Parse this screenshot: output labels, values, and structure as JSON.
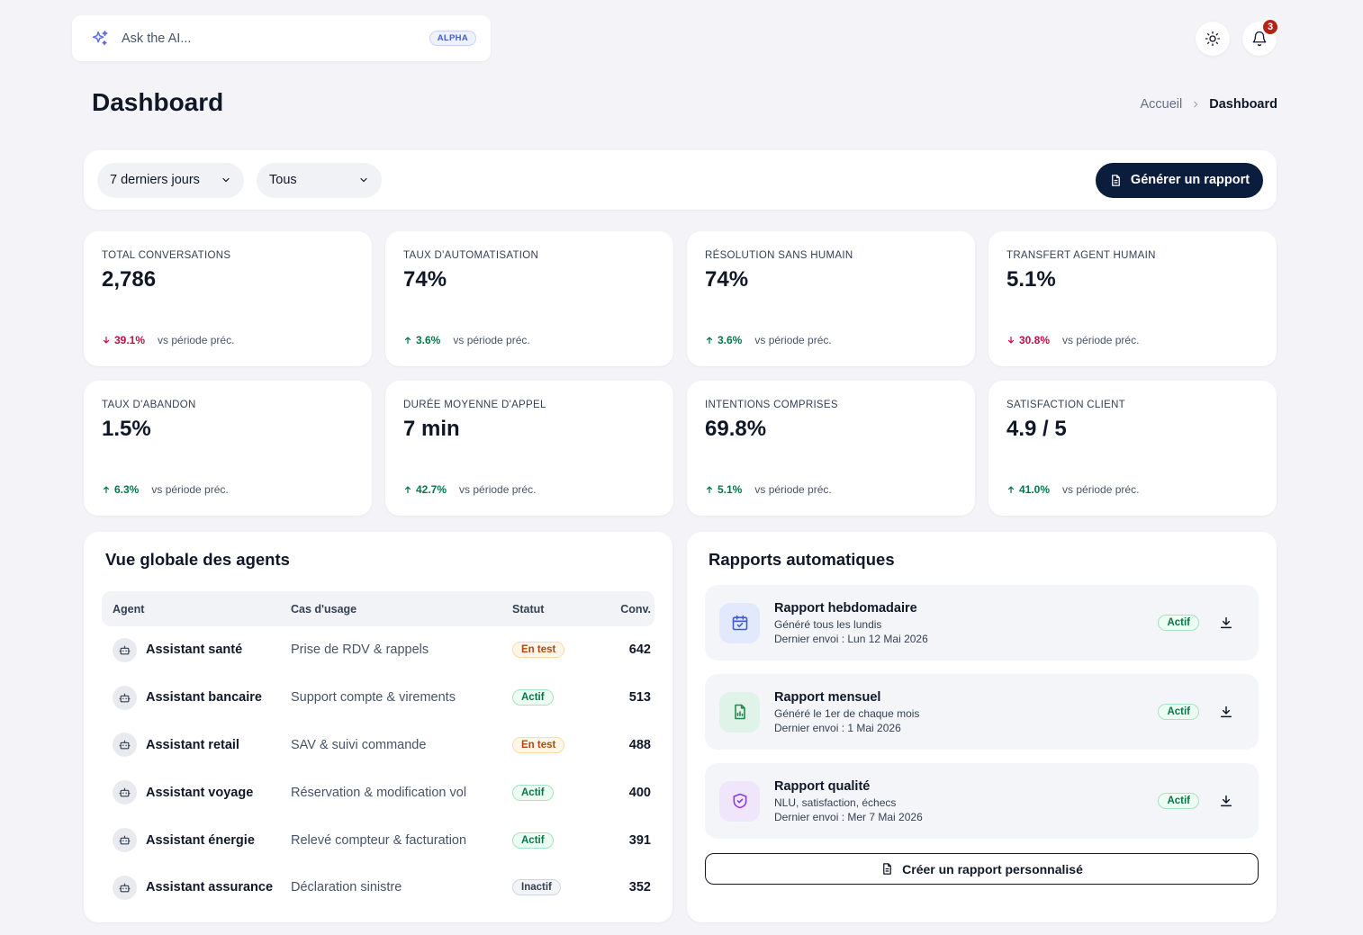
{
  "ai_bar": {
    "placeholder": "Ask the AI...",
    "badge": "ALPHA"
  },
  "header": {
    "notifications_count": "3",
    "title": "Dashboard",
    "breadcrumb": [
      "Accueil",
      "Dashboard"
    ]
  },
  "filters": {
    "period": "7 derniers jours",
    "scope": "Tous",
    "generate_label": "Générer un rapport"
  },
  "kpis": [
    {
      "label": "TOTAL CONVERSATIONS",
      "value": "2,786",
      "delta": "39.1%",
      "direction": "down",
      "vs": "vs période préc."
    },
    {
      "label": "TAUX D'AUTOMATISATION",
      "value": "74%",
      "delta": "3.6%",
      "direction": "up",
      "vs": "vs période préc."
    },
    {
      "label": "RÉSOLUTION SANS HUMAIN",
      "value": "74%",
      "delta": "3.6%",
      "direction": "up",
      "vs": "vs période préc."
    },
    {
      "label": "TRANSFERT AGENT HUMAIN",
      "value": "5.1%",
      "delta": "30.8%",
      "direction": "down",
      "vs": "vs période préc."
    },
    {
      "label": "TAUX D'ABANDON",
      "value": "1.5%",
      "delta": "6.3%",
      "direction": "up",
      "vs": "vs période préc."
    },
    {
      "label": "DURÉE MOYENNE D'APPEL",
      "value": "7 min",
      "delta": "42.7%",
      "direction": "up",
      "vs": "vs période préc."
    },
    {
      "label": "INTENTIONS COMPRISES",
      "value": "69.8%",
      "delta": "5.1%",
      "direction": "up",
      "vs": "vs période préc."
    },
    {
      "label": "SATISFACTION CLIENT",
      "value": "4.9 / 5",
      "delta": "41.0%",
      "direction": "up",
      "vs": "vs période préc."
    }
  ],
  "agents": {
    "title": "Vue globale des agents",
    "columns": [
      "Agent",
      "Cas d'usage",
      "Statut",
      "Conv."
    ],
    "rows": [
      {
        "name": "Assistant santé",
        "use_case": "Prise de RDV & rappels",
        "status": "En test",
        "status_type": "test",
        "conv": "642"
      },
      {
        "name": "Assistant bancaire",
        "use_case": "Support compte & virements",
        "status": "Actif",
        "status_type": "actif",
        "conv": "513"
      },
      {
        "name": "Assistant retail",
        "use_case": "SAV & suivi commande",
        "status": "En test",
        "status_type": "test",
        "conv": "488"
      },
      {
        "name": "Assistant voyage",
        "use_case": "Réservation & modification vol",
        "status": "Actif",
        "status_type": "actif",
        "conv": "400"
      },
      {
        "name": "Assistant énergie",
        "use_case": "Relevé compteur & facturation",
        "status": "Actif",
        "status_type": "actif",
        "conv": "391"
      },
      {
        "name": "Assistant assurance",
        "use_case": "Déclaration sinistre",
        "status": "Inactif",
        "status_type": "inactif",
        "conv": "352"
      }
    ]
  },
  "reports": {
    "title": "Rapports automatiques",
    "items": [
      {
        "title": "Rapport hebdomadaire",
        "desc": "Généré tous les lundis",
        "sent": "Dernier envoi : Lun 12 Mai 2026",
        "status": "Actif",
        "icon": "calendar-check-icon",
        "color": "#3e5bd6"
      },
      {
        "title": "Rapport mensuel",
        "desc": "Généré le 1er de chaque mois",
        "sent": "Dernier envoi : 1 Mai 2026",
        "status": "Actif",
        "icon": "file-chart-icon",
        "color": "#1f8a4c"
      },
      {
        "title": "Rapport qualité",
        "desc": "NLU, satisfaction, échecs",
        "sent": "Dernier envoi : Mer 7 Mai 2026",
        "status": "Actif",
        "icon": "shield-check-icon",
        "color": "#8a3ad6"
      }
    ],
    "custom_label": "Créer un rapport personnalisé"
  }
}
